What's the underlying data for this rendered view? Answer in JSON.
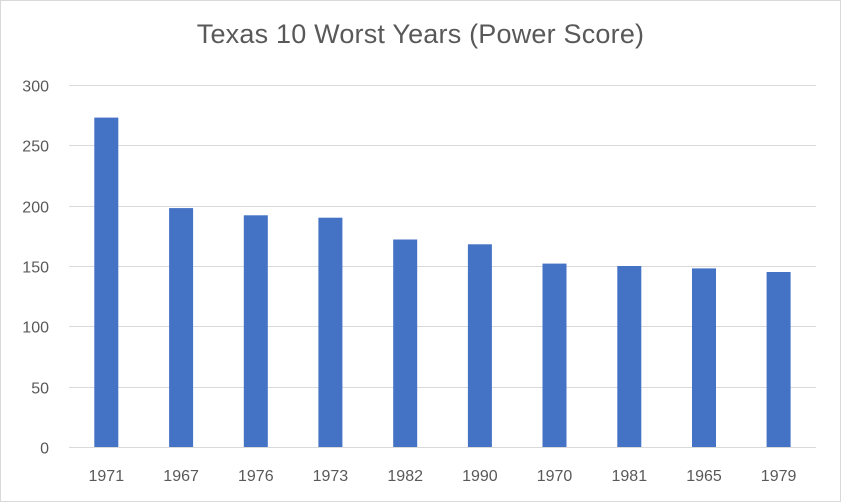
{
  "chart_data": {
    "type": "bar",
    "title": "Texas 10 Worst Years (Power Score)",
    "xlabel": "",
    "ylabel": "",
    "categories": [
      "1971",
      "1967",
      "1976",
      "1973",
      "1982",
      "1990",
      "1970",
      "1981",
      "1965",
      "1979"
    ],
    "values": [
      273,
      198,
      192,
      190,
      172,
      168,
      152,
      150,
      148,
      145
    ],
    "ylim": [
      0,
      300
    ],
    "yticks": [
      0,
      50,
      100,
      150,
      200,
      250,
      300
    ],
    "grid": true,
    "legend": "none",
    "bar_color": "#4472c4",
    "grid_color": "#d9d9d9"
  }
}
